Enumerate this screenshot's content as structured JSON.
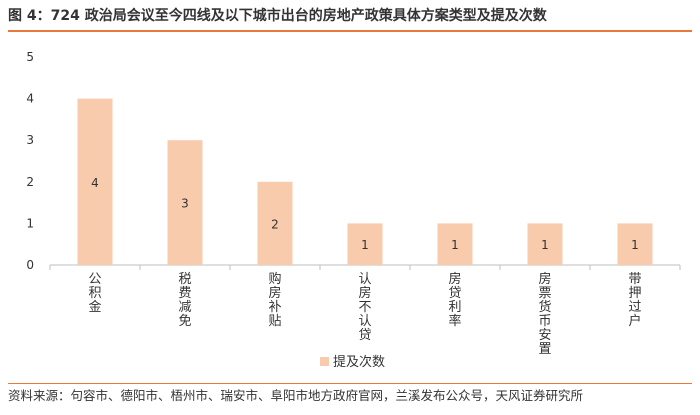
{
  "figure": {
    "title": "图 4：724 政治局会议至今四线及以下城市出台的房地产政策具体方案类型及提及次数",
    "source": "资料来源：句容市、德阳市、梧州市、瑞安市、阜阳市地方政府官网，兰溪发布公众号，天风证券研究所",
    "accent_color": "#e8793a"
  },
  "chart_data": {
    "type": "bar",
    "categories": [
      "公积金",
      "税费减免",
      "购房补贴",
      "认房不认贷",
      "房贷利率",
      "房票货币安置",
      "带押过户"
    ],
    "series": [
      {
        "name": "提及次数",
        "values": [
          4,
          3,
          2,
          1,
          1,
          1,
          1
        ],
        "color": "#f8cbad"
      }
    ],
    "y_ticks": [
      0,
      1,
      2,
      3,
      4,
      5
    ],
    "ylim": [
      0,
      5
    ],
    "grid": false,
    "data_labels": true,
    "legend_position": "bottom-center",
    "x_label_orientation": "vertical"
  }
}
